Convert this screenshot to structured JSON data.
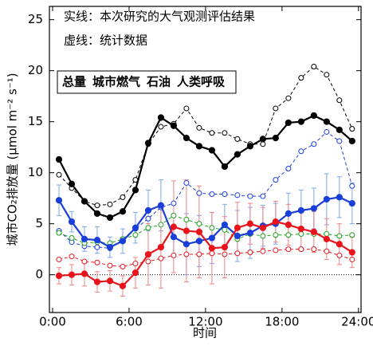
{
  "chart_data": {
    "type": "line",
    "annotations": [
      "实线：本次研究的大气观测评估结果",
      "虚线：统计数据"
    ],
    "x_label": "时间",
    "y_label": "城市CO₂排放量 (μmol m⁻² s⁻¹)",
    "x": [
      0.5,
      1.5,
      2.5,
      3.5,
      4.5,
      5.5,
      6.5,
      7.5,
      8.5,
      9.5,
      10.5,
      11.5,
      12.5,
      13.5,
      14.5,
      15.5,
      16.5,
      17.5,
      18.5,
      19.5,
      20.5,
      21.5,
      22.5,
      23.5
    ],
    "xlim": [
      -0.25,
      24.2
    ],
    "xticks": [
      {
        "value": 0,
        "label": "0:00"
      },
      {
        "value": 6,
        "label": "6:00"
      },
      {
        "value": 12,
        "label": "12:00"
      },
      {
        "value": 18,
        "label": "18:00"
      },
      {
        "value": 24,
        "label": "24:00"
      }
    ],
    "ylim": [
      -3.7,
      26.3
    ],
    "yticks": [
      0,
      5,
      10,
      15,
      20,
      25
    ],
    "reference_line": 0,
    "series": [
      {
        "name": "总量",
        "color": "#000000",
        "values": [
          11.3,
          8.9,
          7.2,
          6.0,
          5.6,
          6.2,
          8.3,
          12.9,
          15.4,
          14.6,
          13.4,
          12.6,
          12.2,
          10.6,
          11.8,
          12.6,
          13.3,
          13.4,
          14.9,
          15.0,
          15.6,
          15.0,
          14.2,
          13.1
        ],
        "dashed_values": [
          9.8,
          8.5,
          7.2,
          6.8,
          6.9,
          7.6,
          9.3,
          12.8,
          14.5,
          14.8,
          16.3,
          14.4,
          13.9,
          13.9,
          13.3,
          12.8,
          12.8,
          16.3,
          17.3,
          19.3,
          20.4,
          19.6,
          17.1,
          14.3
        ]
      },
      {
        "name": "城市燃气",
        "color": "#1a3fd8",
        "error_color": "#79a6ef",
        "values": [
          7.3,
          5.2,
          3.5,
          3.4,
          2.7,
          3.3,
          4.6,
          6.3,
          6.8,
          3.7,
          3.0,
          3.3,
          3.6,
          4.9,
          3.8,
          4.1,
          4.8,
          5.0,
          6.0,
          6.3,
          6.5,
          7.4,
          7.6,
          7.0
        ],
        "errors": [
          1.5,
          1.0,
          1.2,
          1.3,
          1.0,
          1.2,
          1.5,
          2.0,
          2.5,
          2.0,
          3.0,
          2.5,
          2.5,
          2.0,
          2.5,
          2.5,
          2.0,
          2.0,
          2.0,
          2.0,
          2.0,
          2.5,
          2.0,
          2.0
        ],
        "dashed_values": [
          4.3,
          3.2,
          2.8,
          2.7,
          2.6,
          3.5,
          4.5,
          5.5,
          6.6,
          7.0,
          9.0,
          8.0,
          7.9,
          7.9,
          7.8,
          7.7,
          7.7,
          9.3,
          10.4,
          12.1,
          12.8,
          14.0,
          13.1,
          8.7
        ]
      },
      {
        "name": "石油",
        "color": "#e8141c",
        "error_color": "#f08080",
        "values": [
          -0.1,
          0.0,
          0.1,
          -0.7,
          -0.6,
          -1.1,
          0.2,
          2.0,
          2.7,
          4.7,
          4.3,
          4.2,
          2.6,
          2.7,
          4.6,
          5.0,
          4.6,
          5.2,
          4.9,
          4.5,
          4.2,
          3.5,
          3.0,
          2.2
        ],
        "errors": [
          0.8,
          1.0,
          1.2,
          1.0,
          1.0,
          1.0,
          1.5,
          3.0,
          4.0,
          4.5,
          5.0,
          4.5,
          3.5,
          3.0,
          2.5,
          2.0,
          2.0,
          2.0,
          2.0,
          2.0,
          2.0,
          2.0,
          2.0,
          1.5
        ],
        "dashed_values": [
          1.5,
          1.8,
          1.3,
          1.2,
          0.9,
          0.8,
          1.1,
          1.3,
          1.6,
          1.9,
          2.0,
          2.0,
          2.1,
          2.0,
          2.1,
          2.2,
          2.3,
          2.4,
          2.5,
          2.5,
          2.5,
          2.3,
          1.9,
          1.5
        ]
      },
      {
        "name": "人类呼吸",
        "color": "#1aa01a",
        "dashed_values": [
          4.1,
          3.6,
          3.1,
          3.2,
          3.1,
          3.5,
          3.9,
          4.6,
          4.9,
          5.8,
          5.4,
          5.0,
          4.6,
          4.4,
          3.5,
          4.0,
          3.8,
          3.9,
          3.9,
          4.0,
          4.0,
          4.0,
          3.8,
          3.9
        ]
      }
    ]
  }
}
